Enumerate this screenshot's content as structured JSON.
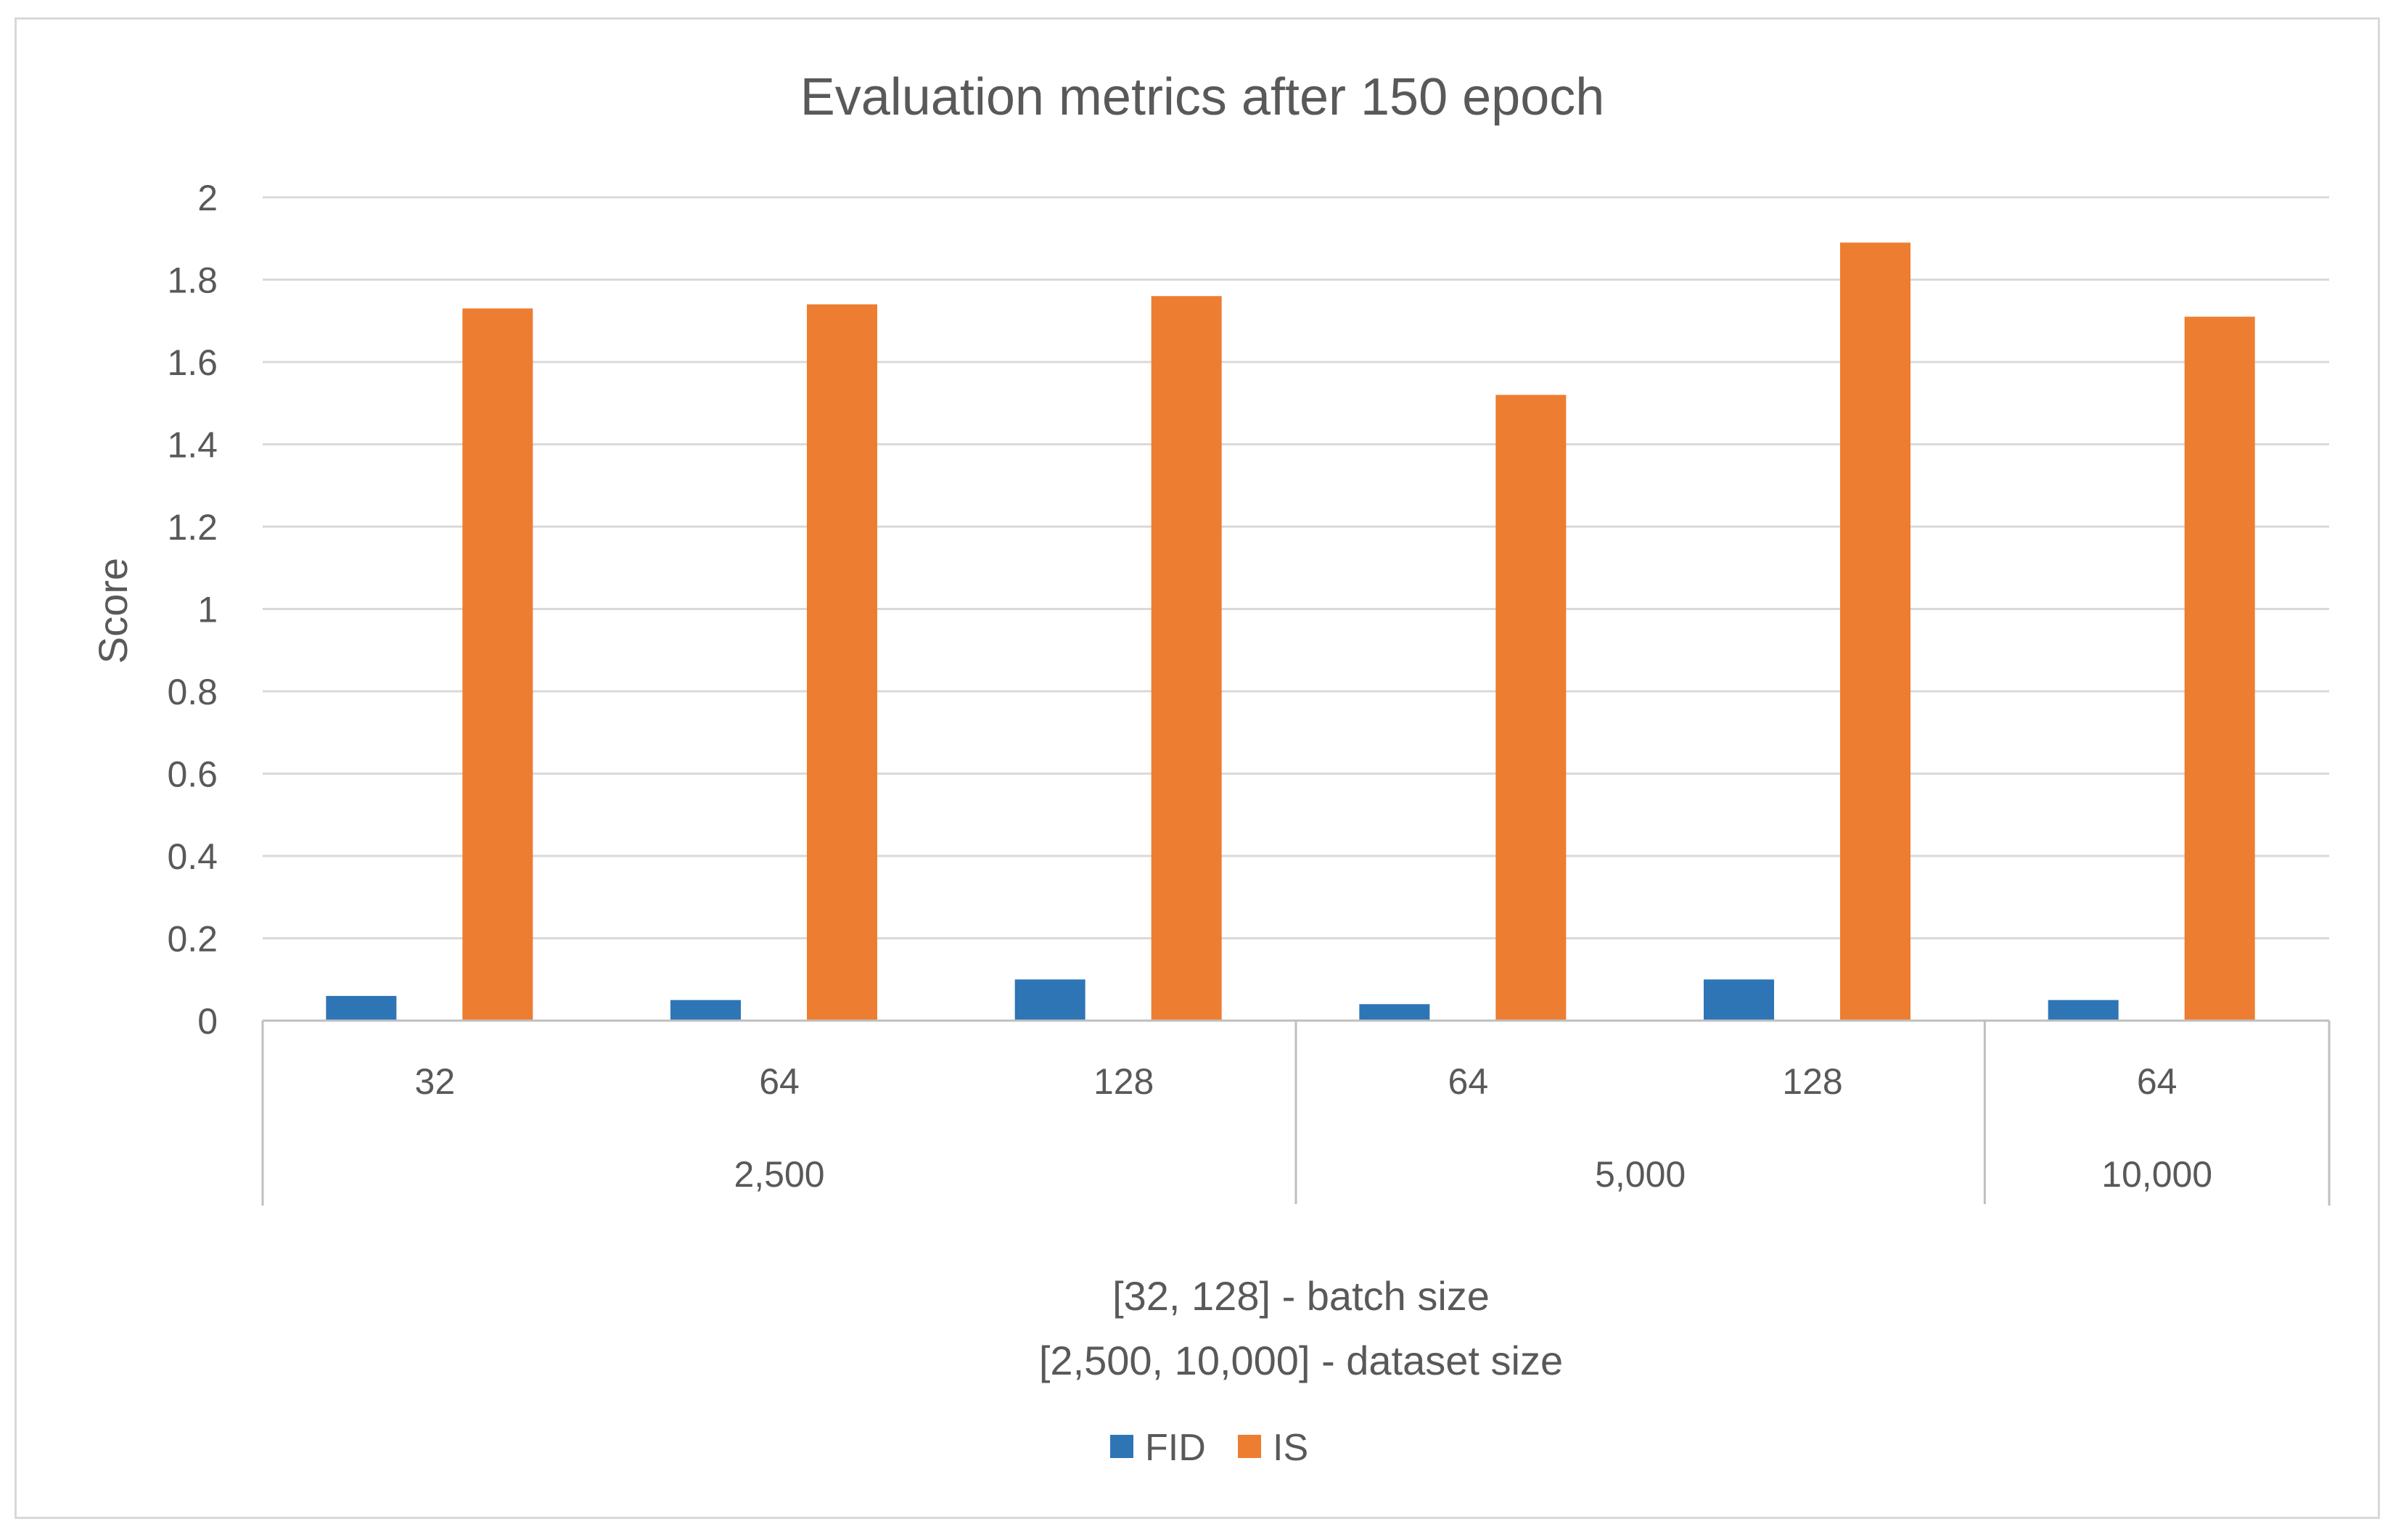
{
  "chart_data": {
    "type": "bar",
    "title": "Evaluation metrics after 150 epoch",
    "ylabel": "Score",
    "xlabel_lines": [
      "[32, 128] - batch size",
      "[2,500, 10,000] - dataset size"
    ],
    "ylim": [
      0,
      2
    ],
    "yticks": [
      0,
      0.2,
      0.4,
      0.6,
      0.8,
      1,
      1.2,
      1.4,
      1.6,
      1.8,
      2
    ],
    "ytick_labels": [
      "0",
      "0.2",
      "0.4",
      "0.6",
      "0.8",
      "1",
      "1.2",
      "1.4",
      "1.6",
      "1.8",
      "2"
    ],
    "grid": true,
    "legend_position": "bottom",
    "categories": [
      "32",
      "64",
      "128",
      "64",
      "128",
      "64"
    ],
    "groups": [
      {
        "label": "2,500",
        "count": 3
      },
      {
        "label": "5,000",
        "count": 2
      },
      {
        "label": "10,000",
        "count": 1
      }
    ],
    "series": [
      {
        "name": "FID",
        "color": "#2e75b6",
        "values": [
          0.06,
          0.05,
          0.1,
          0.04,
          0.1,
          0.05
        ]
      },
      {
        "name": "IS",
        "color": "#ed7d31",
        "values": [
          1.73,
          1.74,
          1.76,
          1.52,
          1.89,
          1.71
        ]
      }
    ],
    "colors": {
      "grid": "#d9d9d9",
      "axis": "#bfbfbf",
      "text": "#595959"
    }
  }
}
